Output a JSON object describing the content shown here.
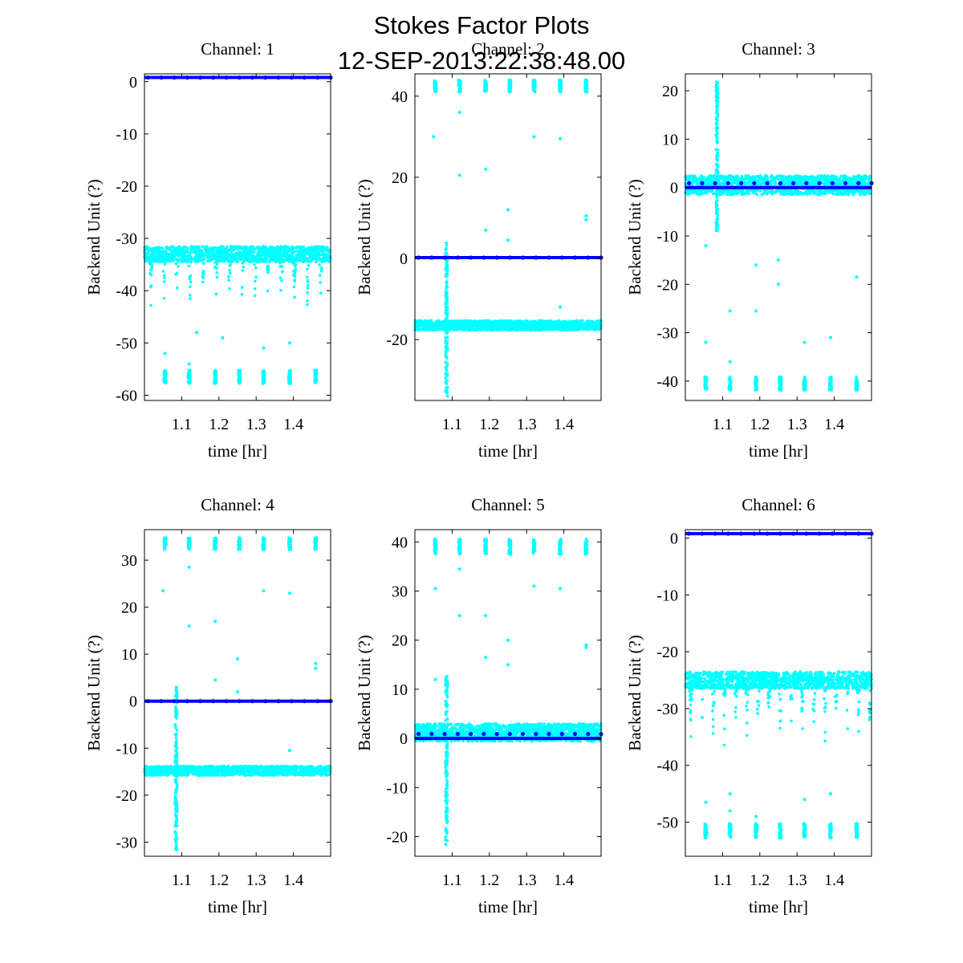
{
  "figure": {
    "title": "Stokes Factor Plots",
    "subtitle": "12-SEP-2013:22:38:48.00"
  },
  "colors": {
    "raw": "#00ffff",
    "mean": "#0000ff",
    "axes": "#000000",
    "background": "#ffffff"
  },
  "chart_data": [
    {
      "type": "scatter",
      "title": "Channel: 1",
      "xlabel": "time [hr]",
      "ylabel": "Backend Unit (?)",
      "xlim": [
        1.0,
        1.5
      ],
      "ylim": [
        -61,
        1.5
      ],
      "xticks": [
        1.1,
        1.2,
        1.3,
        1.4
      ],
      "yticks": [
        0,
        -10,
        -20,
        -30,
        -40,
        -50,
        -60
      ],
      "series": [
        {
          "role": "raw",
          "band": {
            "base": -33,
            "noise": 1.5,
            "spikeDepth": 10,
            "spikeEvery": 0.035
          },
          "burst": {
            "x": 1.085,
            "from": -33,
            "to": -33
          },
          "calibration": {
            "level": -56.5,
            "spread": 1.3
          },
          "outliers": [
            [
              1.055,
              -52
            ],
            [
              1.12,
              -54
            ],
            [
              1.14,
              -48
            ],
            [
              1.21,
              -49
            ],
            [
              1.32,
              -51
            ],
            [
              1.39,
              -50
            ]
          ]
        },
        {
          "role": "mean",
          "level": 0.8,
          "markers": [
            0.8
          ]
        }
      ]
    },
    {
      "type": "scatter",
      "title": "Channel: 2",
      "xlabel": "time [hr]",
      "ylabel": "Backend Unit (?)",
      "xlim": [
        1.0,
        1.5
      ],
      "ylim": [
        -35,
        45.5
      ],
      "xticks": [
        1.1,
        1.2,
        1.3,
        1.4
      ],
      "yticks": [
        40,
        20,
        0,
        -20
      ],
      "series": [
        {
          "role": "raw",
          "band": {
            "base": -16.5,
            "noise": 1.2,
            "spikeDepth": 0,
            "spikeEvery": 0
          },
          "burst": {
            "x": 1.085,
            "from": -34,
            "to": 4
          },
          "calibration": {
            "level": 42.5,
            "spread": 1.5
          },
          "outliers": [
            [
              1.05,
              30
            ],
            [
              1.12,
              36
            ],
            [
              1.12,
              20.5
            ],
            [
              1.19,
              22
            ],
            [
              1.19,
              7
            ],
            [
              1.25,
              12
            ],
            [
              1.25,
              4.5
            ],
            [
              1.32,
              30
            ],
            [
              1.39,
              29.5
            ],
            [
              1.46,
              10.5
            ],
            [
              1.46,
              9.5
            ],
            [
              1.39,
              -12
            ]
          ]
        },
        {
          "role": "mean",
          "level": 0.2,
          "markers": [
            0.2
          ]
        }
      ]
    },
    {
      "type": "scatter",
      "title": "Channel: 3",
      "xlabel": "time [hr]",
      "ylabel": "Backend Unit (?)",
      "xlim": [
        1.0,
        1.5
      ],
      "ylim": [
        -44,
        23.5
      ],
      "xticks": [
        1.1,
        1.2,
        1.3,
        1.4
      ],
      "yticks": [
        20,
        10,
        0,
        -10,
        -20,
        -30,
        -40
      ],
      "series": [
        {
          "role": "raw",
          "band": {
            "base": 0.5,
            "noise": 2.0,
            "spikeDepth": 0,
            "spikeEvery": 0
          },
          "burst": {
            "x": 1.085,
            "from": -9,
            "to": 22
          },
          "calibration": {
            "level": -40.5,
            "spread": 1.4
          },
          "outliers": [
            [
              1.055,
              -12
            ],
            [
              1.055,
              -32
            ],
            [
              1.12,
              -25.5
            ],
            [
              1.12,
              -36
            ],
            [
              1.19,
              -16
            ],
            [
              1.19,
              -25.5
            ],
            [
              1.25,
              -15
            ],
            [
              1.25,
              -20
            ],
            [
              1.32,
              -32
            ],
            [
              1.39,
              -31
            ],
            [
              1.46,
              -18.5
            ]
          ]
        },
        {
          "role": "mean",
          "level": 0.0,
          "markers": [
            0.9
          ]
        }
      ]
    },
    {
      "type": "scatter",
      "title": "Channel: 4",
      "xlabel": "time [hr]",
      "ylabel": "Backend Unit (?)",
      "xlim": [
        1.0,
        1.5
      ],
      "ylim": [
        -33,
        36.5
      ],
      "xticks": [
        1.1,
        1.2,
        1.3,
        1.4
      ],
      "yticks": [
        30,
        20,
        10,
        0,
        -10,
        -20,
        -30
      ],
      "series": [
        {
          "role": "raw",
          "band": {
            "base": -14.8,
            "noise": 1.0,
            "spikeDepth": 0,
            "spikeEvery": 0
          },
          "burst": {
            "x": 1.085,
            "from": -32,
            "to": 3
          },
          "calibration": {
            "level": 33.5,
            "spread": 1.3
          },
          "outliers": [
            [
              1.05,
              23.5
            ],
            [
              1.12,
              28.5
            ],
            [
              1.12,
              16
            ],
            [
              1.19,
              17
            ],
            [
              1.19,
              4.5
            ],
            [
              1.25,
              9
            ],
            [
              1.25,
              2
            ],
            [
              1.32,
              23.5
            ],
            [
              1.39,
              23
            ],
            [
              1.46,
              8
            ],
            [
              1.46,
              7
            ],
            [
              1.39,
              -10.5
            ]
          ]
        },
        {
          "role": "mean",
          "level": 0.0,
          "markers": [
            0.0
          ]
        }
      ]
    },
    {
      "type": "scatter",
      "title": "Channel: 5",
      "xlabel": "time [hr]",
      "ylabel": "Backend Unit (?)",
      "xlim": [
        1.0,
        1.5
      ],
      "ylim": [
        -24,
        42.5
      ],
      "xticks": [
        1.1,
        1.2,
        1.3,
        1.4
      ],
      "yticks": [
        40,
        30,
        20,
        10,
        0,
        -10,
        -20
      ],
      "series": [
        {
          "role": "raw",
          "band": {
            "base": 1.2,
            "noise": 1.8,
            "spikeDepth": 0,
            "spikeEvery": 0
          },
          "burst": {
            "x": 1.085,
            "from": -22,
            "to": 13
          },
          "calibration": {
            "level": 39,
            "spread": 1.6
          },
          "outliers": [
            [
              1.055,
              30.5
            ],
            [
              1.055,
              12
            ],
            [
              1.12,
              34.5
            ],
            [
              1.12,
              25
            ],
            [
              1.19,
              25
            ],
            [
              1.19,
              16.5
            ],
            [
              1.25,
              20
            ],
            [
              1.25,
              15
            ],
            [
              1.32,
              31
            ],
            [
              1.39,
              30.5
            ],
            [
              1.46,
              19
            ],
            [
              1.46,
              18.5
            ]
          ]
        },
        {
          "role": "mean",
          "level": 0.0,
          "markers": [
            0.9
          ]
        }
      ]
    },
    {
      "type": "scatter",
      "title": "Channel: 6",
      "xlabel": "time [hr]",
      "ylabel": "Backend Unit (?)",
      "xlim": [
        1.0,
        1.5
      ],
      "ylim": [
        -56,
        1.5
      ],
      "xticks": [
        1.1,
        1.2,
        1.3,
        1.4
      ],
      "yticks": [
        0,
        -10,
        -20,
        -30,
        -40,
        -50
      ],
      "series": [
        {
          "role": "raw",
          "band": {
            "base": -25,
            "noise": 1.5,
            "spikeDepth": 11,
            "spikeEvery": 0.03
          },
          "burst": {
            "x": 1.085,
            "from": -25,
            "to": -25
          },
          "calibration": {
            "level": -51.5,
            "spread": 1.3
          },
          "outliers": [
            [
              1.055,
              -46.5
            ],
            [
              1.12,
              -45
            ],
            [
              1.12,
              -48
            ],
            [
              1.19,
              -49
            ],
            [
              1.32,
              -46
            ],
            [
              1.39,
              -45
            ]
          ]
        },
        {
          "role": "mean",
          "level": 0.8,
          "markers": [
            0.8
          ]
        }
      ]
    }
  ]
}
